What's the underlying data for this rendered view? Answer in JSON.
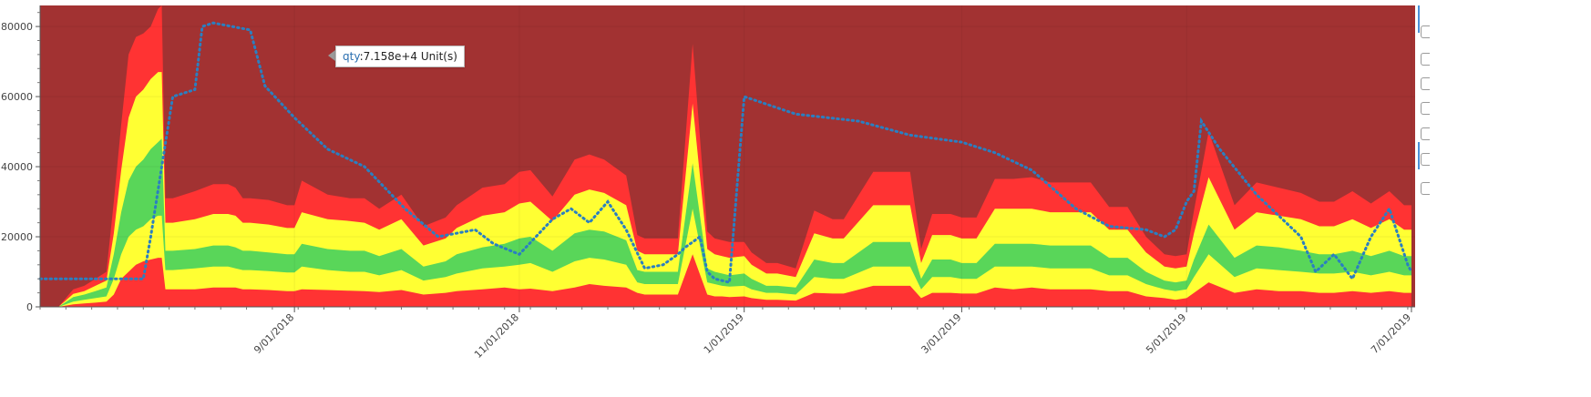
{
  "chart_data": {
    "type": "area",
    "title": "",
    "xlabel": "",
    "ylabel": "",
    "x_range": [
      "2018-06-24",
      "2019-07-02"
    ],
    "ylim": [
      0,
      86000
    ],
    "y_ticks": [
      0,
      20000,
      40000,
      60000,
      80000
    ],
    "y_tick_labels": [
      "0",
      "20000",
      "40000",
      "60000",
      "80000"
    ],
    "x_ticks": [
      "2018-09-01",
      "2018-11-01",
      "2019-01-01",
      "2019-03-01",
      "2019-05-01",
      "2019-07-01"
    ],
    "x_tick_labels": [
      "9/01/2018",
      "11/01/2018",
      "1/01/2019",
      "3/01/2019",
      "5/01/2019",
      "7/01/2019"
    ],
    "background_color": "#a23232",
    "grid": true,
    "band_colors": [
      "#ff3333",
      "#ffff33",
      "#59d659",
      "#ffff33",
      "#ff3333"
    ],
    "line_color": "#2a7fc1",
    "x": [
      "2018-06-29",
      "2018-07-03",
      "2018-07-06",
      "2018-07-09",
      "2018-07-12",
      "2018-07-14",
      "2018-07-16",
      "2018-07-18",
      "2018-07-20",
      "2018-07-22",
      "2018-07-24",
      "2018-07-26",
      "2018-07-27",
      "2018-07-28",
      "2018-07-30",
      "2018-08-05",
      "2018-08-10",
      "2018-08-14",
      "2018-08-16",
      "2018-08-18",
      "2018-08-20",
      "2018-08-25",
      "2018-08-30",
      "2018-09-01",
      "2018-09-03",
      "2018-09-10",
      "2018-09-16",
      "2018-09-20",
      "2018-09-24",
      "2018-09-30",
      "2018-10-06",
      "2018-10-12",
      "2018-10-15",
      "2018-10-22",
      "2018-10-28",
      "2018-11-01",
      "2018-11-04",
      "2018-11-10",
      "2018-11-16",
      "2018-11-20",
      "2018-11-24",
      "2018-11-30",
      "2018-12-03",
      "2018-12-05",
      "2018-12-10",
      "2018-12-12",
      "2018-12-14",
      "2018-12-18",
      "2018-12-22",
      "2018-12-24",
      "2018-12-26",
      "2018-12-28",
      "2019-01-01",
      "2019-01-03",
      "2019-01-07",
      "2019-01-10",
      "2019-01-15",
      "2019-01-20",
      "2019-01-25",
      "2019-01-28",
      "2019-02-05",
      "2019-02-10",
      "2019-02-15",
      "2019-02-18",
      "2019-02-21",
      "2019-02-26",
      "2019-03-01",
      "2019-03-05",
      "2019-03-10",
      "2019-03-15",
      "2019-03-20",
      "2019-03-25",
      "2019-03-30",
      "2019-04-05",
      "2019-04-10",
      "2019-04-15",
      "2019-04-20",
      "2019-04-25",
      "2019-04-28",
      "2019-05-01",
      "2019-05-03",
      "2019-05-07",
      "2019-05-14",
      "2019-05-20",
      "2019-05-26",
      "2019-06-01",
      "2019-06-06",
      "2019-06-10",
      "2019-06-15",
      "2019-06-20",
      "2019-06-25",
      "2019-06-29",
      "2019-07-01"
    ],
    "series": [
      {
        "values": [
          0,
          700,
          1000,
          1200,
          1500,
          3500,
          8000,
          10000,
          12000,
          13000,
          13500,
          14000,
          14000,
          5000,
          5000,
          5000,
          5500,
          5500,
          5500,
          5000,
          5000,
          4800,
          4500,
          4500,
          5000,
          4800,
          4600,
          4500,
          4200,
          4800,
          3500,
          4000,
          4500,
          5000,
          5500,
          5000,
          5200,
          4500,
          5500,
          6500,
          6000,
          5500,
          4000,
          3500,
          3500,
          3500,
          3500,
          15000,
          3500,
          3000,
          3000,
          2800,
          3000,
          2500,
          2000,
          2000,
          1800,
          4000,
          3800,
          3800,
          6000,
          6000,
          6000,
          2500,
          4000,
          4000,
          3800,
          3800,
          5500,
          5000,
          5500,
          5000,
          5000,
          5000,
          4500,
          4500,
          3000,
          2500,
          2000,
          2500,
          4000,
          7000,
          4000,
          5000,
          4500,
          4500,
          4000,
          4000,
          4500,
          4000,
          4500,
          4000,
          4000
        ]
      },
      {
        "values": [
          0,
          1500,
          2000,
          2500,
          3000,
          8000,
          15000,
          20000,
          22000,
          23000,
          25000,
          26000,
          26000,
          10500,
          10500,
          11000,
          11500,
          11500,
          11000,
          10500,
          10500,
          10200,
          9800,
          9800,
          11500,
          10500,
          10000,
          10000,
          9000,
          10500,
          7500,
          8500,
          9500,
          11000,
          11500,
          12000,
          12500,
          10000,
          13000,
          14000,
          13500,
          12000,
          7000,
          6500,
          6500,
          6500,
          6500,
          28000,
          7000,
          6500,
          6000,
          5800,
          6000,
          5000,
          4000,
          4000,
          3500,
          8500,
          8000,
          8000,
          11500,
          11500,
          11500,
          5000,
          8500,
          8500,
          8000,
          8000,
          11500,
          11500,
          11500,
          11000,
          11000,
          11000,
          9000,
          9000,
          6500,
          5000,
          4500,
          5000,
          8500,
          15000,
          8500,
          11000,
          10500,
          10000,
          9500,
          9500,
          10000,
          9000,
          10000,
          9000,
          9000
        ]
      },
      {
        "values": [
          0,
          2800,
          3500,
          4500,
          5500,
          15000,
          27000,
          36000,
          40000,
          42000,
          45000,
          47000,
          48000,
          16000,
          16000,
          16500,
          17500,
          17500,
          17000,
          16000,
          16000,
          15500,
          15000,
          15000,
          18000,
          16500,
          16000,
          16000,
          14500,
          16500,
          11500,
          13000,
          15000,
          17000,
          18000,
          19500,
          20000,
          16000,
          21000,
          22000,
          21500,
          19000,
          10500,
          10000,
          10000,
          10000,
          10000,
          41000,
          11000,
          10000,
          9500,
          9000,
          9500,
          8000,
          6000,
          6000,
          5500,
          13500,
          12500,
          12500,
          18500,
          18500,
          18500,
          8000,
          13500,
          13500,
          12500,
          12500,
          18000,
          18000,
          18000,
          17500,
          17500,
          17500,
          14000,
          14000,
          10000,
          7500,
          7000,
          7500,
          13500,
          23500,
          14000,
          17500,
          17000,
          16000,
          15000,
          15000,
          16000,
          14500,
          16000,
          14500,
          14500
        ]
      },
      {
        "values": [
          0,
          3700,
          4500,
          6000,
          7500,
          21000,
          39000,
          54000,
          60000,
          62000,
          65000,
          67000,
          67000,
          24000,
          24000,
          25000,
          26500,
          26500,
          26000,
          24000,
          24000,
          23500,
          22500,
          22500,
          27000,
          25000,
          24500,
          24000,
          22000,
          25000,
          17500,
          19500,
          22500,
          26000,
          27000,
          29500,
          30000,
          24500,
          32000,
          33500,
          32500,
          29000,
          16000,
          15000,
          15000,
          15000,
          15000,
          58000,
          16500,
          15000,
          14500,
          14000,
          14500,
          12000,
          9500,
          9500,
          8500,
          21000,
          19500,
          19500,
          29000,
          29000,
          29000,
          12500,
          20500,
          20500,
          19500,
          19500,
          28000,
          28000,
          28000,
          27000,
          27000,
          27000,
          22000,
          22000,
          15500,
          11500,
          11000,
          11500,
          21000,
          37000,
          22000,
          27000,
          26000,
          25000,
          23000,
          23000,
          25000,
          22500,
          25000,
          22000,
          22000
        ]
      },
      {
        "values": [
          0,
          5000,
          6000,
          8000,
          10000,
          30000,
          52000,
          72000,
          77000,
          78000,
          80000,
          85000,
          86000,
          31000,
          31000,
          33000,
          35000,
          35000,
          34000,
          31000,
          31000,
          30500,
          29000,
          29000,
          36000,
          32000,
          31000,
          31000,
          28000,
          32000,
          23000,
          25500,
          29000,
          34000,
          35000,
          38500,
          39000,
          31500,
          42000,
          43500,
          42000,
          37500,
          20500,
          19500,
          19500,
          19500,
          19500,
          75000,
          21500,
          19500,
          19000,
          18500,
          18500,
          15500,
          12500,
          12500,
          11000,
          27500,
          25000,
          25000,
          38500,
          38500,
          38500,
          16500,
          26500,
          26500,
          25500,
          25500,
          36500,
          36500,
          37000,
          35500,
          35500,
          35500,
          28500,
          28500,
          20000,
          15000,
          14500,
          15000,
          27500,
          50000,
          29000,
          35500,
          34000,
          32500,
          30000,
          30000,
          33000,
          29500,
          33000,
          29000,
          29000
        ]
      }
    ],
    "line": {
      "name": "qty",
      "style": "dotted",
      "x": [
        "2018-06-24",
        "2018-07-22",
        "2018-07-24",
        "2018-07-30",
        "2018-08-05",
        "2018-08-07",
        "2018-08-10",
        "2018-08-20",
        "2018-08-24",
        "2018-09-01",
        "2018-09-10",
        "2018-09-20",
        "2018-10-01",
        "2018-10-10",
        "2018-10-20",
        "2018-10-25",
        "2018-11-01",
        "2018-11-10",
        "2018-11-15",
        "2018-11-20",
        "2018-11-25",
        "2018-11-30",
        "2018-12-05",
        "2018-12-10",
        "2018-12-14",
        "2018-12-16",
        "2018-12-20",
        "2018-12-22",
        "2018-12-24",
        "2018-12-28",
        "2019-01-01",
        "2019-01-15",
        "2019-02-01",
        "2019-02-15",
        "2019-03-01",
        "2019-03-10",
        "2019-03-20",
        "2019-04-01",
        "2019-04-10",
        "2019-04-20",
        "2019-04-25",
        "2019-04-28",
        "2019-05-01",
        "2019-05-03",
        "2019-05-05",
        "2019-05-10",
        "2019-05-20",
        "2019-06-01",
        "2019-06-05",
        "2019-06-10",
        "2019-06-15",
        "2019-06-20",
        "2019-06-25",
        "2019-06-30",
        "2019-07-01"
      ],
      "values": [
        8000,
        8000,
        20000,
        60000,
        62000,
        80000,
        81000,
        79000,
        63000,
        54000,
        45000,
        40000,
        28000,
        20000,
        22000,
        18000,
        15000,
        25000,
        28000,
        24000,
        30000,
        22000,
        11000,
        12000,
        15000,
        17000,
        20000,
        10000,
        8000,
        7000,
        60000,
        55000,
        53000,
        49000,
        47000,
        44000,
        39000,
        28000,
        23000,
        22000,
        20000,
        22000,
        30000,
        33000,
        53000,
        45000,
        32000,
        20000,
        10000,
        15000,
        8000,
        20000,
        28000,
        12000,
        10000
      ]
    }
  },
  "tooltip": {
    "key": "qty",
    "value": ":7.158e+4 Unit(s)"
  },
  "toolbar": {
    "icons": [
      "pan-icon",
      "box-zoom-icon",
      "wheel-zoom-icon",
      "save-icon",
      "reset-icon",
      "hover-icon",
      "help-icon"
    ]
  }
}
